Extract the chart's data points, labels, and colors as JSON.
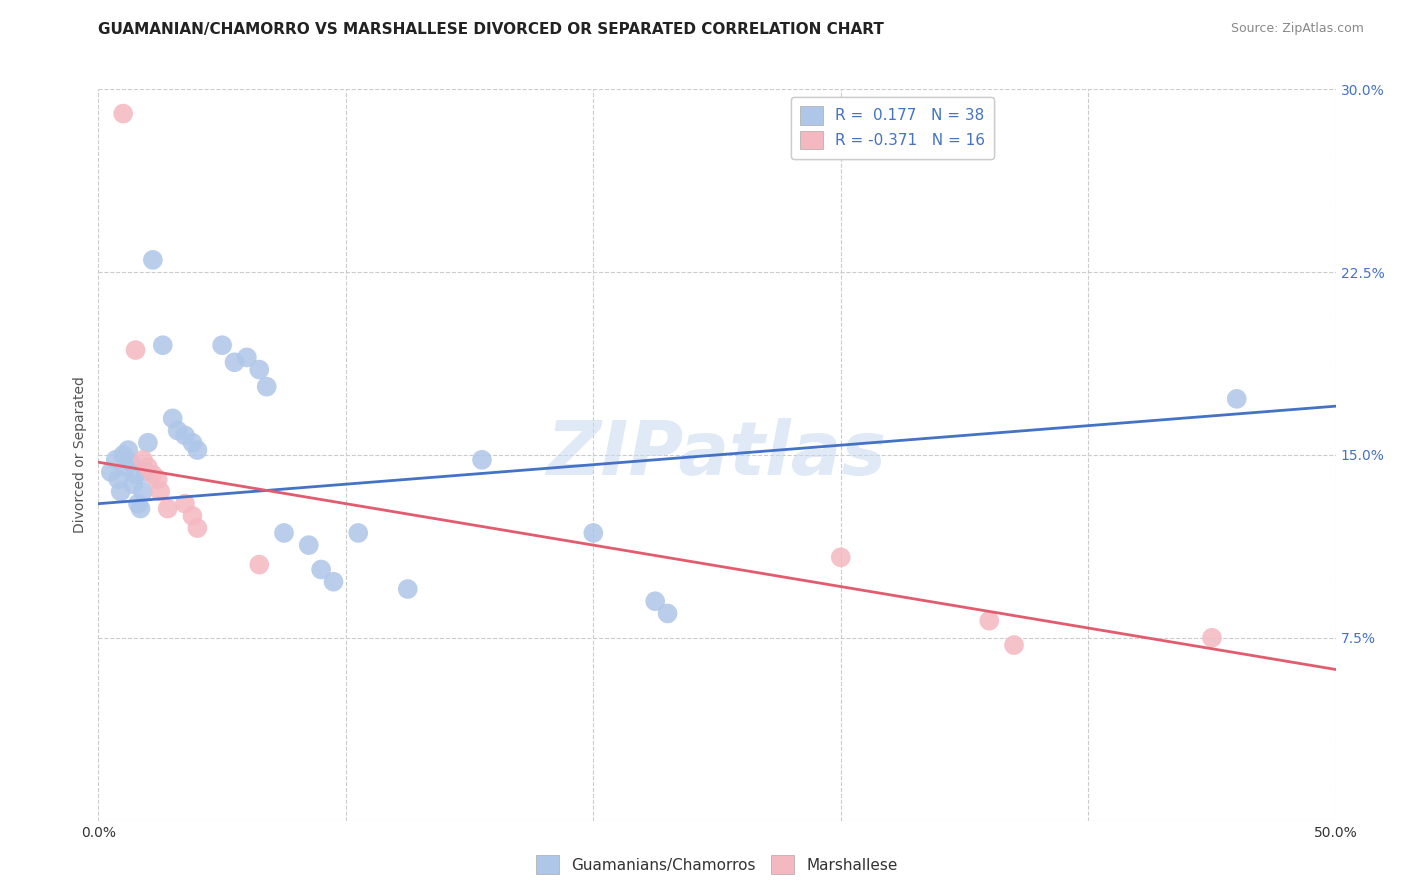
{
  "title": "GUAMANIAN/CHAMORRO VS MARSHALLESE DIVORCED OR SEPARATED CORRELATION CHART",
  "source": "Source: ZipAtlas.com",
  "ylabel": "Divorced or Separated",
  "xlim": [
    0.0,
    0.5
  ],
  "ylim": [
    0.0,
    0.3
  ],
  "xticks": [
    0.0,
    0.1,
    0.2,
    0.3,
    0.4,
    0.5
  ],
  "xticklabels": [
    "0.0%",
    "",
    "",
    "",
    "",
    "50.0%"
  ],
  "yticks": [
    0.0,
    0.075,
    0.15,
    0.225,
    0.3
  ],
  "yticklabels_right": [
    "",
    "7.5%",
    "15.0%",
    "22.5%",
    "30.0%"
  ],
  "legend_blue_label": "R =  0.177   N = 38",
  "legend_pink_label": "R = -0.371   N = 16",
  "legend_bottom_blue": "Guamanians/Chamorros",
  "legend_bottom_pink": "Marshallese",
  "blue_color": "#aec6e8",
  "pink_color": "#f4b8c1",
  "blue_line_color": "#4472c4",
  "pink_line_color": "#e05c6e",
  "blue_points": [
    [
      0.005,
      0.143
    ],
    [
      0.007,
      0.148
    ],
    [
      0.008,
      0.14
    ],
    [
      0.009,
      0.135
    ],
    [
      0.01,
      0.15
    ],
    [
      0.011,
      0.145
    ],
    [
      0.012,
      0.152
    ],
    [
      0.013,
      0.147
    ],
    [
      0.014,
      0.138
    ],
    [
      0.015,
      0.142
    ],
    [
      0.016,
      0.13
    ],
    [
      0.017,
      0.128
    ],
    [
      0.018,
      0.135
    ],
    [
      0.019,
      0.143
    ],
    [
      0.02,
      0.155
    ],
    [
      0.022,
      0.23
    ],
    [
      0.026,
      0.195
    ],
    [
      0.03,
      0.165
    ],
    [
      0.032,
      0.16
    ],
    [
      0.035,
      0.158
    ],
    [
      0.038,
      0.155
    ],
    [
      0.04,
      0.152
    ],
    [
      0.05,
      0.195
    ],
    [
      0.055,
      0.188
    ],
    [
      0.06,
      0.19
    ],
    [
      0.065,
      0.185
    ],
    [
      0.068,
      0.178
    ],
    [
      0.075,
      0.118
    ],
    [
      0.085,
      0.113
    ],
    [
      0.09,
      0.103
    ],
    [
      0.095,
      0.098
    ],
    [
      0.105,
      0.118
    ],
    [
      0.125,
      0.095
    ],
    [
      0.155,
      0.148
    ],
    [
      0.2,
      0.118
    ],
    [
      0.225,
      0.09
    ],
    [
      0.23,
      0.085
    ],
    [
      0.46,
      0.173
    ]
  ],
  "pink_points": [
    [
      0.01,
      0.29
    ],
    [
      0.015,
      0.193
    ],
    [
      0.018,
      0.148
    ],
    [
      0.02,
      0.145
    ],
    [
      0.022,
      0.142
    ],
    [
      0.024,
      0.14
    ],
    [
      0.025,
      0.135
    ],
    [
      0.028,
      0.128
    ],
    [
      0.035,
      0.13
    ],
    [
      0.038,
      0.125
    ],
    [
      0.04,
      0.12
    ],
    [
      0.065,
      0.105
    ],
    [
      0.3,
      0.108
    ],
    [
      0.36,
      0.082
    ],
    [
      0.37,
      0.072
    ],
    [
      0.45,
      0.075
    ]
  ],
  "blue_line_x": [
    0.0,
    0.5
  ],
  "blue_line_y_start": 0.13,
  "blue_line_y_end": 0.17,
  "pink_line_x": [
    0.0,
    0.5
  ],
  "pink_line_y_start": 0.147,
  "pink_line_y_end": 0.062,
  "watermark": "ZIPatlas",
  "background_color": "#ffffff",
  "grid_color": "#cccccc",
  "title_fontsize": 11,
  "axis_label_fontsize": 10,
  "tick_fontsize": 10,
  "legend_fontsize": 11
}
